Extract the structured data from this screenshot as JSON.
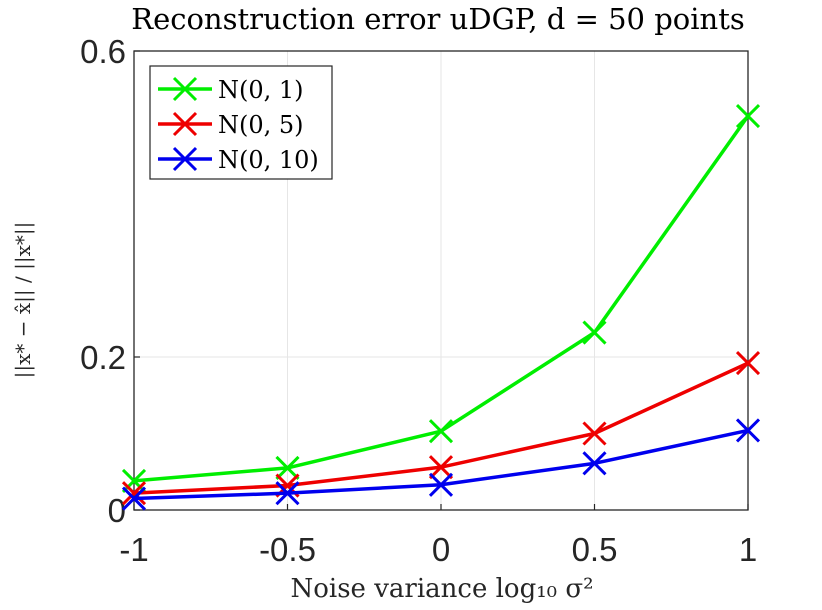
{
  "chart_data": {
    "type": "line",
    "title": "Reconstruction error uDGP, d = 50 points",
    "xlabel": "Noise variance log₁₀ σ²",
    "ylabel": "||x* − x̂|| / ||x*||",
    "x": [
      -1,
      -0.5,
      0,
      0.5,
      1
    ],
    "xlim": [
      -1,
      1
    ],
    "ylim": [
      0,
      0.6
    ],
    "xticks": [
      -1,
      -0.5,
      0,
      0.5,
      1
    ],
    "xtick_labels": [
      "-1",
      "-0.5",
      "0",
      "0.5",
      "1"
    ],
    "yticks": [
      0,
      0.2,
      0.6
    ],
    "ytick_labels": [
      "0",
      "0.2",
      "0.6"
    ],
    "grid": true,
    "legend_position": "top-left",
    "series": [
      {
        "name": "N(0, 1)",
        "color": "#00ee00",
        "marker": "x",
        "values": [
          0.038,
          0.055,
          0.103,
          0.232,
          0.515
        ]
      },
      {
        "name": "N(0, 5)",
        "color": "#ee0000",
        "marker": "x",
        "values": [
          0.022,
          0.032,
          0.056,
          0.1,
          0.192
        ]
      },
      {
        "name": "N(0, 10)",
        "color": "#0000ee",
        "marker": "x",
        "values": [
          0.015,
          0.022,
          0.033,
          0.061,
          0.104
        ]
      }
    ]
  }
}
